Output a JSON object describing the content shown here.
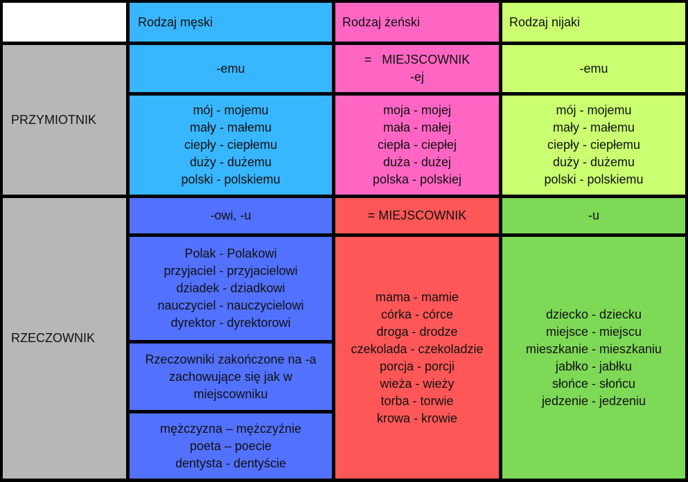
{
  "header": {
    "masculine": "Rodzaj męski",
    "feminine": "Rodzaj żeński",
    "neuter": "Rodzaj nijaki"
  },
  "rows": {
    "adjective": "PRZYMIOTNIK",
    "noun": "RZECZOWNIK"
  },
  "adjective": {
    "masc_ending": "-emu",
    "fem_ending_line1": "=   MIEJSCOWNIK",
    "fem_ending_line2": "-ej",
    "neut_ending": "-emu",
    "masc_examples": [
      "mój - mojemu",
      "mały - małemu",
      "ciepły - ciepłemu",
      "duży - dużemu",
      "polski - polskiemu"
    ],
    "fem_examples": [
      "moja - mojej",
      "mała - małej",
      "ciepła - ciepłej",
      "duża - dużej",
      "polska - polskiej"
    ],
    "neut_examples": [
      "mój - mojemu",
      "mały - małemu",
      "ciepły - ciepłemu",
      "duży - dużemu",
      "polski - polskiemu"
    ]
  },
  "noun": {
    "masc_ending": "-owi, -u",
    "fem_ending": "= MIEJSCOWNIK",
    "neut_ending": "-u",
    "masc_examples": [
      "Polak - Polakowi",
      "przyjaciel - przyjacielowi",
      "dziadek - dziadkowi",
      "nauczyciel - nauczycielowi",
      "dyrektor - dyrektorowi"
    ],
    "masc_note": "Rzeczowniki zakończone na -a zachowujące się jak w miejscowniku",
    "masc_a_examples": [
      "mężczyzna – mężczyźnie",
      "poeta – poecie",
      "dentysta - dentyście"
    ],
    "fem_examples": [
      "mama - mamie",
      "córka - córce",
      "droga - drodze",
      "czekolada - czekoladzie",
      "porcja - porcji",
      "wieża - wieży",
      "torba - torwie",
      "krowa - krowie"
    ],
    "neut_examples": [
      "dziecko - dziecku",
      "miejsce - miejscu",
      "mieszkanie - mieszkaniu",
      "jabłko - jabłku",
      "słońce - słońcu",
      "jedzenie - jedzeniu"
    ]
  },
  "colors": {
    "gray": "#b7b7b7",
    "cyan": "#38b6ff",
    "pink": "#ff66c4",
    "lime": "#c9ff70",
    "blue": "#5271ff",
    "red": "#ff5757",
    "green": "#7ed957"
  }
}
